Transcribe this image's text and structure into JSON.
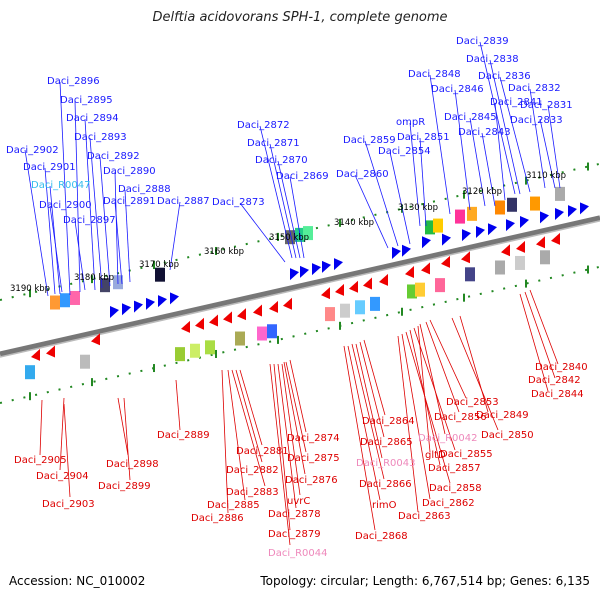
{
  "title": "Delftia acidovorans SPH-1, complete genome",
  "footer": {
    "accession": "Accession: NC_010002",
    "summary": "Topology: circular; Length: 6,767,514 bp; Genes: 6,135"
  },
  "colors": {
    "top_label": "#1a1aff",
    "top_rna_label": "#33bbee",
    "bottom_label": "#dd0000",
    "bottom_rna_label": "#ee88bb",
    "forward_arrow": "#0000ee",
    "reverse_arrow": "#ee0000",
    "backbone": "#777777",
    "tick": "#228822"
  },
  "scale_labels": [
    "3190 kbp",
    "3180 kbp",
    "3170 kbp",
    "3160 kbp",
    "3150 kbp",
    "3140 kbp",
    "3130 kbp",
    "3120 kbp",
    "3110 kbp"
  ],
  "top_labels": [
    {
      "text": "Daci_2896",
      "kind": "gene"
    },
    {
      "text": "Daci_2895",
      "kind": "gene"
    },
    {
      "text": "Daci_2894",
      "kind": "gene"
    },
    {
      "text": "Daci_2893",
      "kind": "gene"
    },
    {
      "text": "Daci_2892",
      "kind": "gene"
    },
    {
      "text": "Daci_2902",
      "kind": "gene"
    },
    {
      "text": "Daci_2901",
      "kind": "gene"
    },
    {
      "text": "Daci_R0047",
      "kind": "rna"
    },
    {
      "text": "Daci_2890",
      "kind": "gene"
    },
    {
      "text": "Daci_2888",
      "kind": "gene"
    },
    {
      "text": "Daci_2891",
      "kind": "gene"
    },
    {
      "text": "Daci_2887",
      "kind": "gene"
    },
    {
      "text": "Daci_2900",
      "kind": "gene"
    },
    {
      "text": "Daci_2897",
      "kind": "gene"
    },
    {
      "text": "Daci_2873",
      "kind": "gene"
    },
    {
      "text": "Daci_2872",
      "kind": "gene"
    },
    {
      "text": "Daci_2871",
      "kind": "gene"
    },
    {
      "text": "Daci_2870",
      "kind": "gene"
    },
    {
      "text": "Daci_2869",
      "kind": "gene"
    },
    {
      "text": "Daci_2860",
      "kind": "gene"
    },
    {
      "text": "Daci_2859",
      "kind": "gene"
    },
    {
      "text": "Daci_2854",
      "kind": "gene"
    },
    {
      "text": "ompR",
      "kind": "gene"
    },
    {
      "text": "Daci_2851",
      "kind": "gene"
    },
    {
      "text": "Daci_2848",
      "kind": "gene"
    },
    {
      "text": "Daci_2846",
      "kind": "gene"
    },
    {
      "text": "Daci_2845",
      "kind": "gene"
    },
    {
      "text": "Daci_2843",
      "kind": "gene"
    },
    {
      "text": "Daci_2841",
      "kind": "gene"
    },
    {
      "text": "Daci_2839",
      "kind": "gene"
    },
    {
      "text": "Daci_2838",
      "kind": "gene"
    },
    {
      "text": "Daci_2836",
      "kind": "gene"
    },
    {
      "text": "Daci_2832",
      "kind": "gene"
    },
    {
      "text": "Daci_2831",
      "kind": "gene"
    },
    {
      "text": "Daci_2833",
      "kind": "gene"
    }
  ],
  "bottom_labels": [
    {
      "text": "Daci_2905",
      "kind": "gene"
    },
    {
      "text": "Daci_2904",
      "kind": "gene"
    },
    {
      "text": "Daci_2903",
      "kind": "gene"
    },
    {
      "text": "Daci_2898",
      "kind": "gene"
    },
    {
      "text": "Daci_2899",
      "kind": "gene"
    },
    {
      "text": "Daci_2889",
      "kind": "gene"
    },
    {
      "text": "Daci_2881",
      "kind": "gene"
    },
    {
      "text": "Daci_2882",
      "kind": "gene"
    },
    {
      "text": "Daci_2883",
      "kind": "gene"
    },
    {
      "text": "Daci_2885",
      "kind": "gene"
    },
    {
      "text": "Daci_2886",
      "kind": "gene"
    },
    {
      "text": "Daci_2874",
      "kind": "gene"
    },
    {
      "text": "Daci_2875",
      "kind": "gene"
    },
    {
      "text": "Daci_2876",
      "kind": "gene"
    },
    {
      "text": "uvrC",
      "kind": "gene"
    },
    {
      "text": "Daci_2878",
      "kind": "gene"
    },
    {
      "text": "Daci_2879",
      "kind": "gene"
    },
    {
      "text": "Daci_R0044",
      "kind": "rna"
    },
    {
      "text": "Daci_2864",
      "kind": "gene"
    },
    {
      "text": "Daci_2865",
      "kind": "gene"
    },
    {
      "text": "Daci_R0043",
      "kind": "rna"
    },
    {
      "text": "Daci_2866",
      "kind": "gene"
    },
    {
      "text": "rimO",
      "kind": "gene"
    },
    {
      "text": "Daci_2868",
      "kind": "gene"
    },
    {
      "text": "Daci_2853",
      "kind": "gene"
    },
    {
      "text": "Daci_2856",
      "kind": "gene"
    },
    {
      "text": "Daci_R0042",
      "kind": "rna"
    },
    {
      "text": "gltD",
      "kind": "gene"
    },
    {
      "text": "Daci_2855",
      "kind": "gene"
    },
    {
      "text": "Daci_2857",
      "kind": "gene"
    },
    {
      "text": "Daci_2858",
      "kind": "gene"
    },
    {
      "text": "Daci_2862",
      "kind": "gene"
    },
    {
      "text": "Daci_2863",
      "kind": "gene"
    },
    {
      "text": "Daci_2849",
      "kind": "gene"
    },
    {
      "text": "Daci_2850",
      "kind": "gene"
    },
    {
      "text": "Daci_2840",
      "kind": "gene"
    },
    {
      "text": "Daci_2842",
      "kind": "gene"
    },
    {
      "text": "Daci_2844",
      "kind": "gene"
    }
  ]
}
